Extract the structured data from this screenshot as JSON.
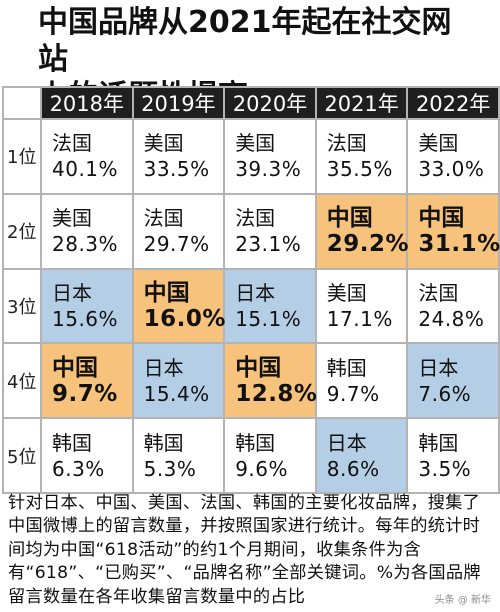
{
  "title_line1": "中国品牌从2021年起在社交网站",
  "title_line2": "上的话题性提高",
  "note": "针对日本、中国、美国、法国、韩国的主要化妆品牌，搜集了中国微博上的留言数量，并按照国家进行统计。每年的统计时间均为中国“618活动”的约1个月期间，收集条件为含有“618”、“已购买”、“品牌名称”全部关键词。%为各国品牌留言数量在各年收集留言数量中的占比",
  "watermark": "头条 @ 新华",
  "colors": {
    "china": "#f6c27c",
    "japan": "#b4cee6",
    "header": "#1f1f1f",
    "border": "#b3b3b3"
  },
  "chart_data": {
    "type": "table",
    "columns": [
      "2018年",
      "2019年",
      "2020年",
      "2021年",
      "2022年"
    ],
    "rank_labels": [
      "1位",
      "2位",
      "3位",
      "4位",
      "5位"
    ],
    "rows": [
      [
        {
          "country": "法国",
          "share": "40.1%"
        },
        {
          "country": "美国",
          "share": "33.5%"
        },
        {
          "country": "美国",
          "share": "39.3%"
        },
        {
          "country": "法国",
          "share": "35.5%"
        },
        {
          "country": "美国",
          "share": "33.0%"
        }
      ],
      [
        {
          "country": "美国",
          "share": "28.3%"
        },
        {
          "country": "法国",
          "share": "29.7%"
        },
        {
          "country": "法国",
          "share": "23.1%"
        },
        {
          "country": "中国",
          "share": "29.2%"
        },
        {
          "country": "中国",
          "share": "31.1%"
        }
      ],
      [
        {
          "country": "日本",
          "share": "15.6%"
        },
        {
          "country": "中国",
          "share": "16.0%"
        },
        {
          "country": "日本",
          "share": "15.1%"
        },
        {
          "country": "美国",
          "share": "17.1%"
        },
        {
          "country": "法国",
          "share": "24.8%"
        }
      ],
      [
        {
          "country": "中国",
          "share": "9.7%"
        },
        {
          "country": "日本",
          "share": "15.4%"
        },
        {
          "country": "中国",
          "share": "12.8%"
        },
        {
          "country": "韩国",
          "share": "9.7%"
        },
        {
          "country": "日本",
          "share": "7.6%"
        }
      ],
      [
        {
          "country": "韩国",
          "share": "6.3%"
        },
        {
          "country": "韩国",
          "share": "5.3%"
        },
        {
          "country": "韩国",
          "share": "9.6%"
        },
        {
          "country": "日本",
          "share": "8.6%"
        },
        {
          "country": "韩国",
          "share": "3.5%"
        }
      ]
    ]
  }
}
